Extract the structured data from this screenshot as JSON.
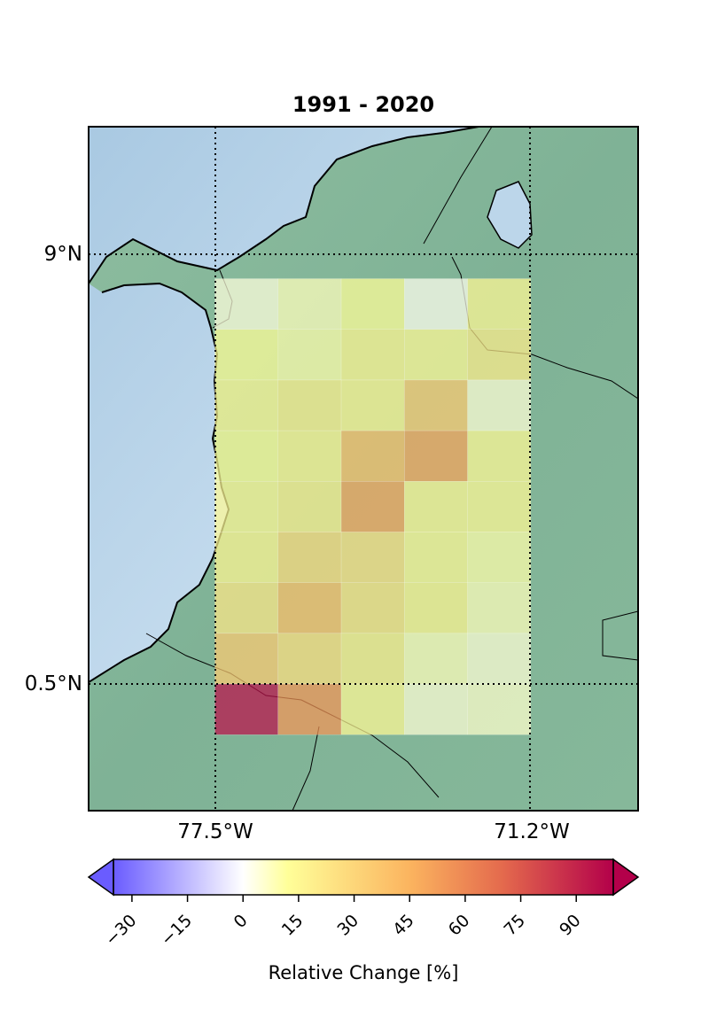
{
  "chart_data": {
    "type": "heatmap",
    "title": "1991 - 2020",
    "map_extent": {
      "lon": [
        -79.5,
        -70.8
      ],
      "lat": [
        -1.5,
        12.0
      ]
    },
    "gridlines": {
      "lon": [
        -77.5,
        -71.2
      ],
      "lat": [
        0.5,
        9.0
      ],
      "lon_labels": [
        "77.5°W",
        "71.2°W"
      ],
      "lat_labels": [
        "0.5°N",
        "9°N"
      ]
    },
    "grid": {
      "lon_start": -77.5,
      "lat_top": 9.0,
      "cell_deg": 1.0,
      "rows": [
        [
          4,
          8,
          12,
          2,
          15
        ],
        [
          12,
          10,
          16,
          14,
          20
        ],
        [
          14,
          18,
          16,
          35,
          5
        ],
        [
          12,
          16,
          40,
          50,
          14
        ],
        [
          14,
          18,
          50,
          15,
          14
        ],
        [
          16,
          28,
          25,
          14,
          10
        ],
        [
          22,
          40,
          24,
          16,
          8
        ],
        [
          35,
          26,
          18,
          8,
          5
        ],
        [
          95,
          55,
          14,
          5,
          6
        ]
      ]
    },
    "colorbar": {
      "label": "Relative Change [%]",
      "vmin": -35,
      "vmax": 100,
      "ticks": [
        -30,
        -15,
        0,
        15,
        30,
        45,
        60,
        75,
        90
      ],
      "tick_labels": [
        "−30",
        "−15",
        "0",
        "15",
        "30",
        "45",
        "60",
        "75",
        "90"
      ],
      "extend": "both",
      "colors": [
        "#6a5cff",
        "#ffffff",
        "#ffff99",
        "#fbb45f",
        "#e46a4d",
        "#b3004a"
      ]
    }
  }
}
